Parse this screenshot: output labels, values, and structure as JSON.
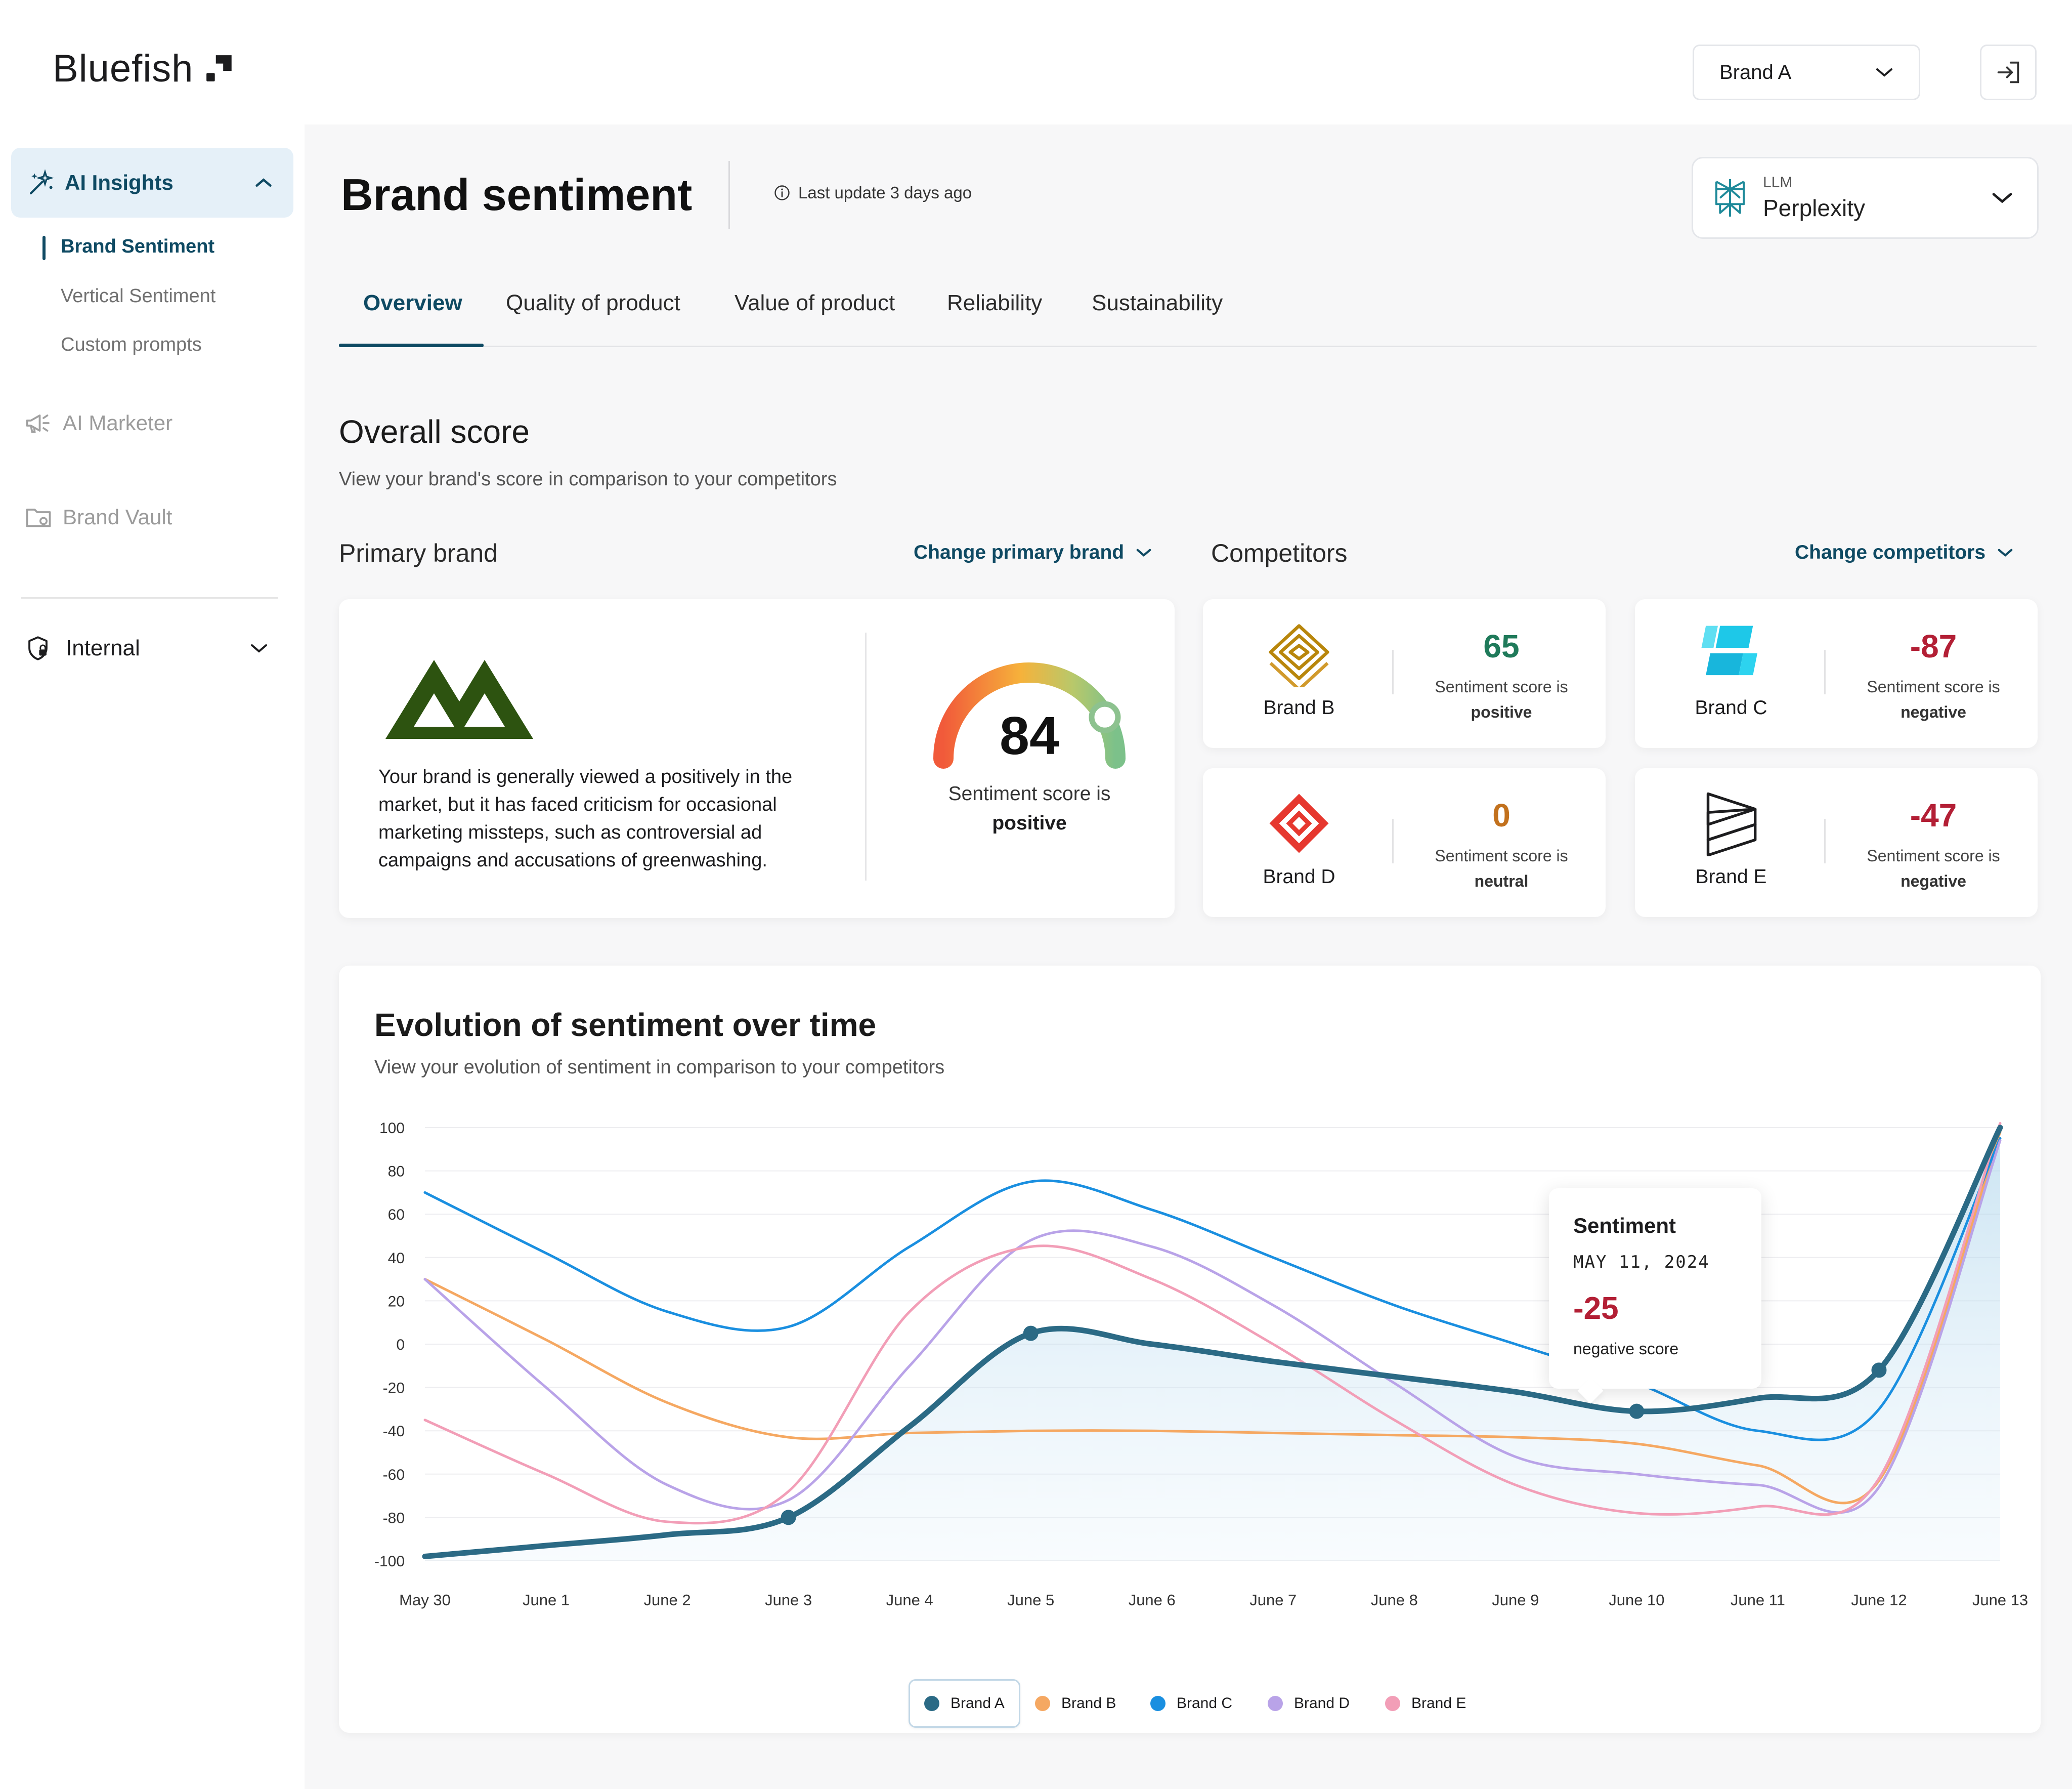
{
  "app": {
    "name": "Bluefish"
  },
  "header": {
    "brand_select_value": "Brand A",
    "logout_icon": "login-arrow-icon"
  },
  "sidebar": {
    "ai_insights": {
      "label": "AI Insights",
      "icon": "sparkles-icon"
    },
    "sub_items": [
      {
        "label": "Brand Sentiment",
        "active": true
      },
      {
        "label": "Vertical Sentiment",
        "active": false
      },
      {
        "label": "Custom prompts",
        "active": false
      }
    ],
    "ai_marketer": {
      "label": "AI Marketer",
      "icon": "megaphone-icon"
    },
    "brand_vault": {
      "label": "Brand Vault",
      "icon": "folder-gear-icon"
    },
    "internal": {
      "label": "Internal",
      "icon": "shield-lock-icon"
    }
  },
  "page": {
    "title": "Brand sentiment",
    "last_update": "Last update 3 days ago",
    "llm": {
      "label": "LLM",
      "value": "Perplexity"
    },
    "tabs": [
      {
        "label": "Overview",
        "active": true
      },
      {
        "label": "Quality of product",
        "active": false
      },
      {
        "label": "Value of product",
        "active": false
      },
      {
        "label": "Reliability",
        "active": false
      },
      {
        "label": "Sustainability",
        "active": false
      }
    ]
  },
  "overall": {
    "title": "Overall score",
    "subtitle": "View your brand's score in comparison to your competitors",
    "primary_label": "Primary brand",
    "change_primary": "Change primary brand",
    "competitors_label": "Competitors",
    "change_competitors": "Change competitors",
    "primary": {
      "description": "Your brand is generally viewed a positively in the market, but it has faced criticism for occasional marketing missteps, such as controversial ad campaigns and accusations of greenwashing.",
      "score": "84",
      "score_value": 84,
      "score_prefix": "Sentiment score is",
      "score_word": "positive"
    },
    "competitors": [
      {
        "name": "Brand B",
        "score": "65",
        "prefix": "Sentiment score is",
        "word": "positive",
        "color": "#1f7a5a",
        "icon": "layered-diamond-icon"
      },
      {
        "name": "Brand C",
        "score": "-87",
        "prefix": "Sentiment score is",
        "word": "negative",
        "color": "#b31f35",
        "icon": "cyan-tiles-icon"
      },
      {
        "name": "Brand D",
        "score": "0",
        "prefix": "Sentiment score is",
        "word": "neutral",
        "color": "#c2711d",
        "icon": "red-diamond-icon"
      },
      {
        "name": "Brand E",
        "score": "-47",
        "prefix": "Sentiment score is",
        "word": "negative",
        "color": "#b31f35",
        "icon": "ribbon-icon"
      }
    ]
  },
  "evolution": {
    "title": "Evolution of sentiment over time",
    "subtitle": "View your evolution of sentiment in comparison to your competitors",
    "tooltip": {
      "title": "Sentiment",
      "date": "MAY 11, 2024",
      "value": "-25",
      "label": "negative score"
    }
  },
  "chart_data": {
    "type": "line",
    "x": [
      "May 30",
      "June 1",
      "June 2",
      "June 3",
      "June 4",
      "June 5",
      "June 6",
      "June 7",
      "June 8",
      "June 9",
      "June 10",
      "June 11",
      "June 12",
      "June 13"
    ],
    "ylim": [
      -100,
      100
    ],
    "yticks": [
      100,
      80,
      60,
      40,
      20,
      0,
      -20,
      -40,
      -60,
      -80,
      -100
    ],
    "grid": true,
    "legend": "bottom-center",
    "series": [
      {
        "name": "Brand A",
        "color": "#2b6a85",
        "values": [
          -98,
          -93,
          -88,
          -80,
          -38,
          5,
          0,
          -8,
          -15,
          -22,
          -31,
          -25,
          -12,
          100
        ],
        "markers": [
          3,
          5,
          10,
          12
        ]
      },
      {
        "name": "Brand B",
        "color": "#f5a862",
        "values": [
          30,
          2,
          -27,
          -43,
          -41,
          -40,
          -40,
          -41,
          -42,
          -43,
          -46,
          -56,
          -63,
          98
        ]
      },
      {
        "name": "Brand C",
        "color": "#1a8fe0",
        "values": [
          70,
          42,
          15,
          8,
          45,
          75,
          62,
          40,
          18,
          0,
          -18,
          -40,
          -30,
          95
        ]
      },
      {
        "name": "Brand D",
        "color": "#b9a3e8",
        "values": [
          30,
          -20,
          -65,
          -72,
          -10,
          48,
          45,
          18,
          -18,
          -52,
          -60,
          -65,
          -66,
          94
        ]
      },
      {
        "name": "Brand E",
        "color": "#f29eb7",
        "values": [
          -35,
          -60,
          -82,
          -68,
          15,
          45,
          30,
          0,
          -35,
          -65,
          -78,
          -75,
          -62,
          102
        ]
      }
    ]
  }
}
